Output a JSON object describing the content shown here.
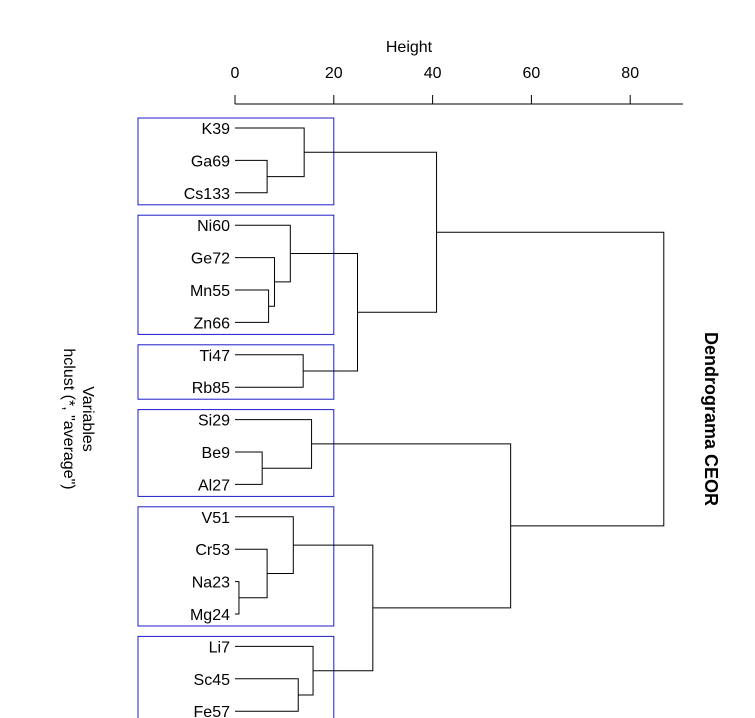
{
  "chart_data": {
    "type": "dendrogram",
    "title": "Dendrograma CEOR",
    "xlabel": "Height",
    "ylabel_line1": "Variables",
    "ylabel_line2": "hclust (*, \"average\")",
    "xlim": [
      0,
      90
    ],
    "xticks": [
      0,
      20,
      40,
      60,
      80
    ],
    "leaves": [
      "K39",
      "Ga69",
      "Cs133",
      "Ni60",
      "Ge72",
      "Mn55",
      "Zn66",
      "Ti47",
      "Rb85",
      "Si29",
      "Be9",
      "Al27",
      "V51",
      "Cr53",
      "Na23",
      "Mg24",
      "Li7",
      "Sc45",
      "Fe57"
    ],
    "merges": [
      {
        "a": "Na23",
        "b": "Mg24",
        "height": 0.8
      },
      {
        "a": "Be9",
        "b": "Al27",
        "height": 5.5
      },
      {
        "a": "Ga69",
        "b": "Cs133",
        "height": 6.5
      },
      {
        "a": "Mn55",
        "b": "Zn66",
        "height": 6.8
      },
      {
        "a": "Cr53",
        "b": "m1",
        "height": 6.5
      },
      {
        "a": "Ge72",
        "b": "m4",
        "height": 8.0
      },
      {
        "a": "Sc45",
        "b": "Fe57",
        "height": 12.8
      },
      {
        "a": "Ni60",
        "b": "m6",
        "height": 11.2
      },
      {
        "a": "Ti47",
        "b": "Rb85",
        "height": 13.8
      },
      {
        "a": "K39",
        "b": "m3",
        "height": 14.0
      },
      {
        "a": "V51",
        "b": "m5",
        "height": 11.8
      },
      {
        "a": "Si29",
        "b": "m2",
        "height": 15.5
      },
      {
        "a": "Li7",
        "b": "m7",
        "height": 15.8
      },
      {
        "a": "m8",
        "b": "m9",
        "height": 24.8
      },
      {
        "a": "m11",
        "b": "m13",
        "height": 27.9
      },
      {
        "a": "m10",
        "b": "m14",
        "height": 40.8
      },
      {
        "a": "m12",
        "b": "m15",
        "height": 55.8
      },
      {
        "a": "m16",
        "b": "m17",
        "height": 86.8
      }
    ],
    "cluster_boxes": [
      [
        "K39",
        "Ga69",
        "Cs133"
      ],
      [
        "Ni60",
        "Ge72",
        "Mn55",
        "Zn66"
      ],
      [
        "Ti47",
        "Rb85"
      ],
      [
        "Si29",
        "Be9",
        "Al27"
      ],
      [
        "V51",
        "Cr53",
        "Na23",
        "Mg24"
      ],
      [
        "Li7",
        "Sc45",
        "Fe57"
      ]
    ],
    "box_height": 20,
    "colors": {
      "box": "#1c1cc8",
      "line": "#000000"
    }
  }
}
